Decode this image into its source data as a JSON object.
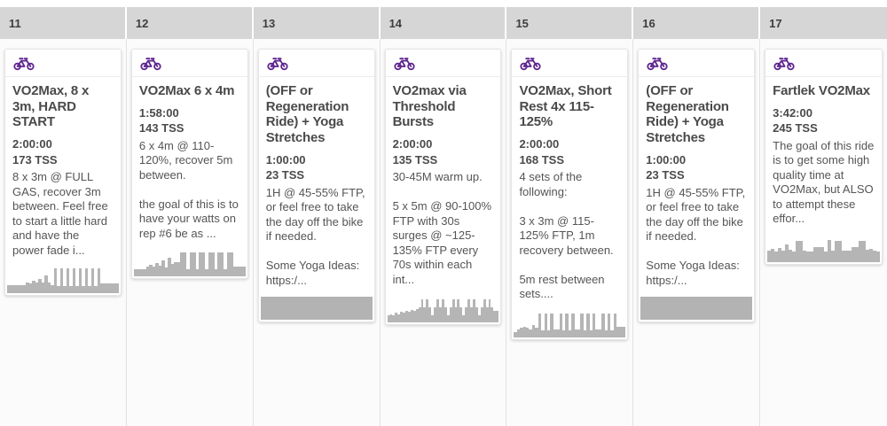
{
  "meta": {
    "view": "training-calendar-week",
    "accent_color": "#5e2590",
    "header_bg": "#d6d6d6",
    "graph_bar_color": "#b5b5b5"
  },
  "week": {
    "days": [
      {
        "number": "11",
        "card": {
          "sport_icon": "bike-icon",
          "title": "VO2Max, 8 x 3m, HARD START",
          "duration": "2:00:00",
          "tss": "173 TSS",
          "description": "8 x 3m @ FULL GAS, recover 3m between. Feel free to start a little hard and have the power fade i...",
          "graph": {
            "type": "bars",
            "bars": [
              30,
              30,
              30,
              30,
              30,
              30,
              42,
              36,
              48,
              40,
              55,
              40,
              68,
              40,
              32,
              95,
              26,
              95,
              26,
              95,
              26,
              95,
              26,
              95,
              26,
              95,
              26,
              95,
              26,
              95,
              38,
              38,
              38,
              38,
              38,
              38
            ]
          }
        }
      },
      {
        "number": "12",
        "card": {
          "sport_icon": "bike-icon",
          "title": "VO2Max 6 x 4m",
          "duration": "1:58:00",
          "tss": "143 TSS",
          "description": "6 x 4m @ 110-120%, recover 5m between.\n\nthe goal of this is to have your watts on rep #6 be as ...",
          "graph": {
            "type": "bars",
            "bars": [
              28,
              28,
              28,
              28,
              36,
              44,
              38,
              50,
              40,
              60,
              34,
              72,
              46,
              55,
              55,
              92,
              92,
              26,
              92,
              92,
              26,
              92,
              92,
              26,
              92,
              92,
              26,
              92,
              92,
              26,
              92,
              92,
              36,
              36,
              36,
              36
            ]
          }
        }
      },
      {
        "number": "13",
        "card": {
          "sport_icon": "bike-icon",
          "title": "(OFF or Regeneration Ride) + Yoga Stretches",
          "duration": "1:00:00",
          "tss": "23 TSS",
          "description": "1H @ 45-55% FTP, or feel free to take the day off the bike if needed.\n\nSome Yoga Ideas: https:/...",
          "graph": {
            "type": "block"
          }
        }
      },
      {
        "number": "14",
        "card": {
          "sport_icon": "bike-icon",
          "title": "VO2max via Threshold Bursts",
          "duration": "2:00:00",
          "tss": "135 TSS",
          "description": "30-45M warm up.\n\n5 x 5m @ 90-100% FTP with 30s surges @ ~125-135% FTP every 70s within each int...",
          "graph": {
            "type": "bars",
            "bars": [
              28,
              32,
              28,
              36,
              32,
              40,
              36,
              44,
              40,
              48,
              44,
              52,
              58,
              86,
              58,
              86,
              58,
              28,
              58,
              86,
              58,
              86,
              58,
              28,
              58,
              86,
              58,
              86,
              58,
              28,
              58,
              86,
              58,
              86,
              58,
              28,
              58,
              86,
              58,
              86,
              58,
              44,
              44
            ]
          }
        }
      },
      {
        "number": "15",
        "card": {
          "sport_icon": "bike-icon",
          "title": "VO2Max, Short Rest 4x 115-125%",
          "duration": "2:00:00",
          "tss": "168 TSS",
          "description": "4 sets of the following:\n\n3 x 3m @ 115-125% FTP, 1m recovery between.\n\n5m rest between sets....",
          "graph": {
            "type": "bars",
            "bars": [
              20,
              28,
              34,
              40,
              34,
              28,
              44,
              34,
              88,
              26,
              88,
              26,
              88,
              30,
              30,
              88,
              26,
              88,
              26,
              88,
              30,
              30,
              88,
              26,
              88,
              26,
              88,
              30,
              30,
              88,
              26,
              88,
              26,
              88,
              38,
              38,
              38
            ]
          }
        }
      },
      {
        "number": "16",
        "card": {
          "sport_icon": "bike-icon",
          "title": "(OFF or Regeneration Ride) + Yoga Stretches",
          "duration": "1:00:00",
          "tss": "23 TSS",
          "description": "1H @ 45-55% FTP, or feel free to take the day off the bike if needed.\n\nSome Yoga Ideas: https:/...",
          "graph": {
            "type": "block"
          }
        }
      },
      {
        "number": "17",
        "card": {
          "sport_icon": "bike-icon",
          "title": "Fartlek VO2Max",
          "duration": "3:42:00",
          "tss": "245 TSS",
          "description": "The goal of this ride is to get some high quality time at VO2Max, but ALSO to attempt these effor...",
          "graph": {
            "type": "bars",
            "bars": [
              42,
              48,
              40,
              52,
              44,
              66,
              46,
              40,
              80,
              80,
              42,
              40,
              40,
              56,
              56,
              56,
              40,
              82,
              44,
              80,
              80,
              44,
              44,
              44,
              56,
              56,
              80,
              80,
              46,
              50,
              44,
              40
            ]
          }
        }
      }
    ]
  }
}
